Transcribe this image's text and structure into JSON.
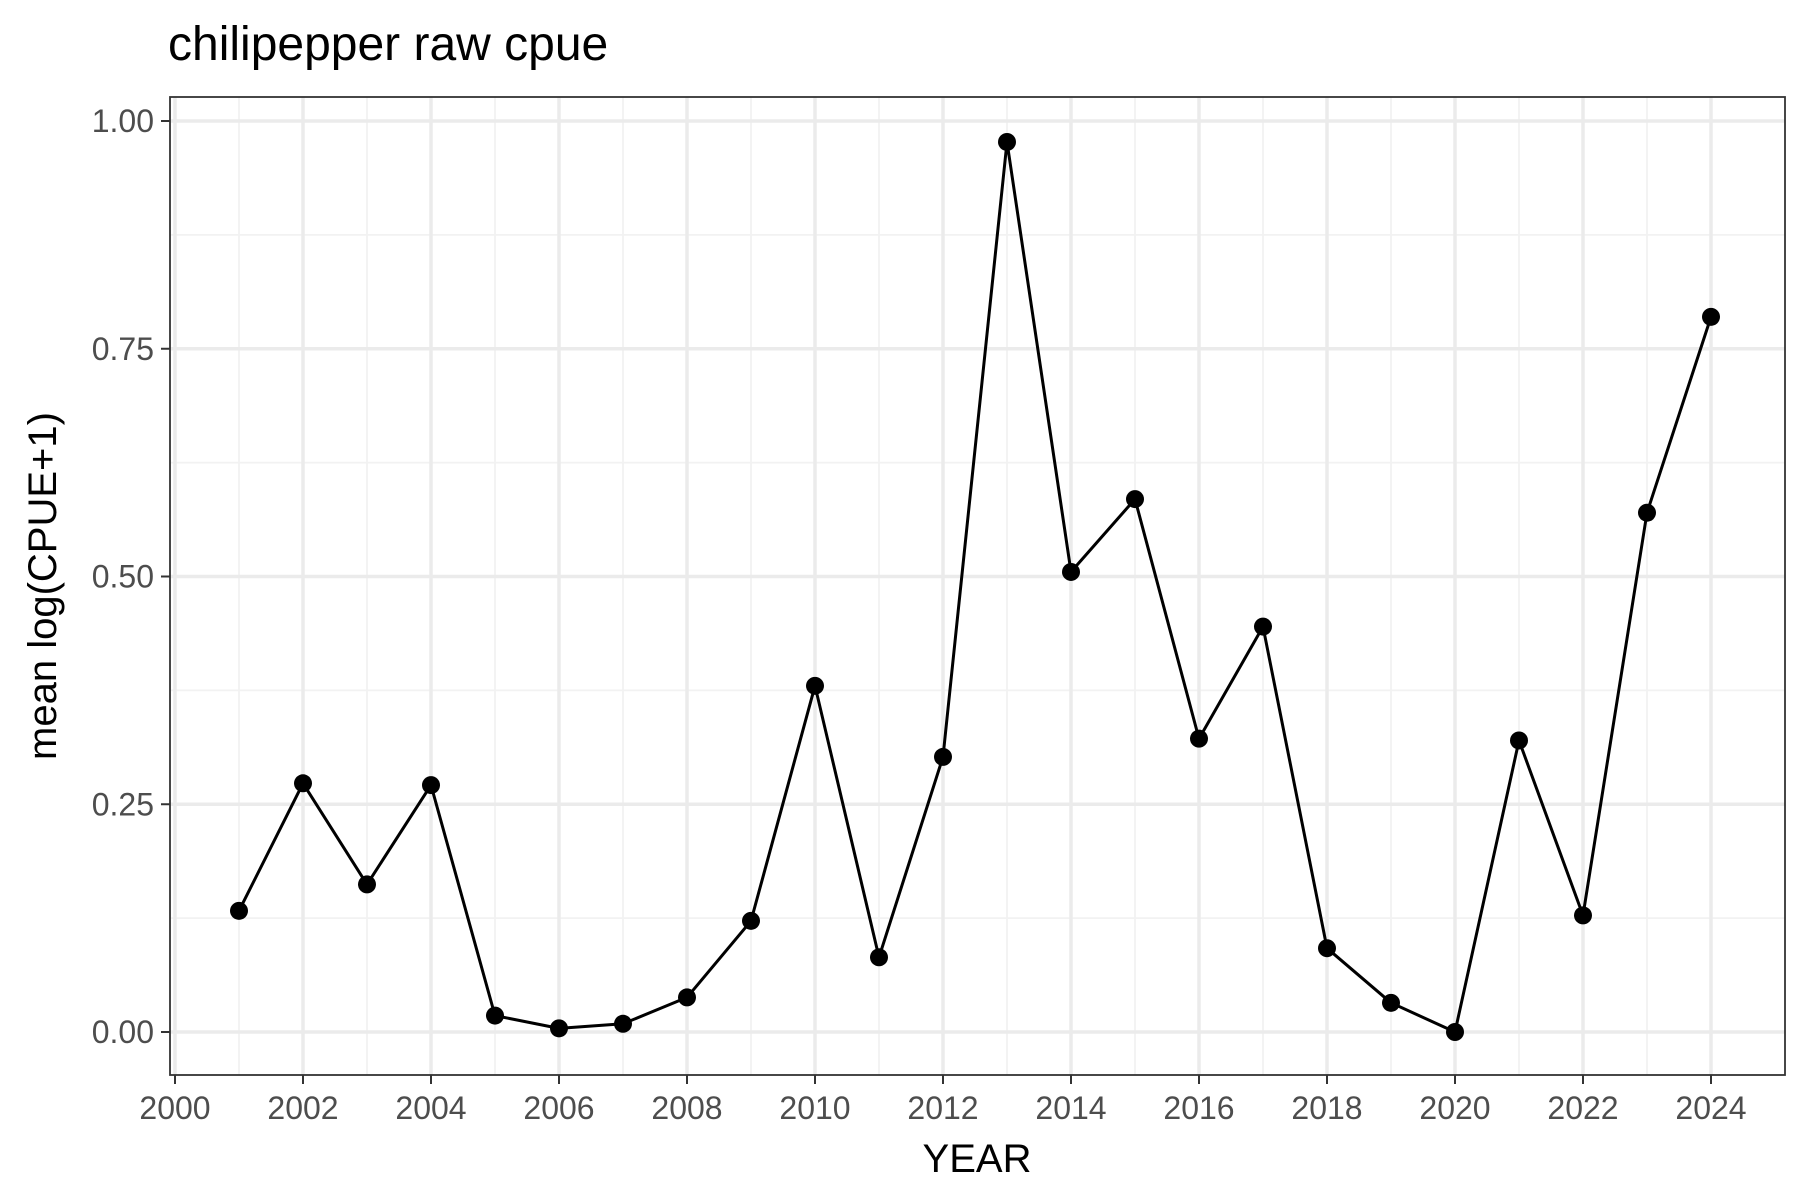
{
  "chart_data": {
    "type": "line",
    "title": "chilipepper raw cpue",
    "xlabel": "YEAR",
    "ylabel": "mean log(CPUE+1)",
    "xlim": [
      2000,
      2024
    ],
    "ylim": [
      0,
      1
    ],
    "x_ticks": [
      "2000",
      "2002",
      "2004",
      "2006",
      "2008",
      "2010",
      "2012",
      "2014",
      "2016",
      "2018",
      "2020",
      "2022",
      "2024"
    ],
    "y_ticks": [
      "0.00",
      "0.25",
      "0.50",
      "0.75",
      "1.00"
    ],
    "grid": true,
    "legend": "none",
    "line_color": "#000000",
    "x": [
      2001,
      2002,
      2003,
      2004,
      2005,
      2006,
      2007,
      2008,
      2009,
      2010,
      2011,
      2012,
      2013,
      2014,
      2015,
      2016,
      2017,
      2018,
      2019,
      2020,
      2021,
      2022,
      2023,
      2024
    ],
    "values": [
      0.133,
      0.273,
      0.162,
      0.271,
      0.018,
      0.004,
      0.009,
      0.038,
      0.122,
      0.38,
      0.082,
      0.302,
      0.977,
      0.505,
      0.585,
      0.322,
      0.445,
      0.092,
      0.032,
      0.0,
      0.32,
      0.128,
      0.57,
      0.785
    ]
  }
}
